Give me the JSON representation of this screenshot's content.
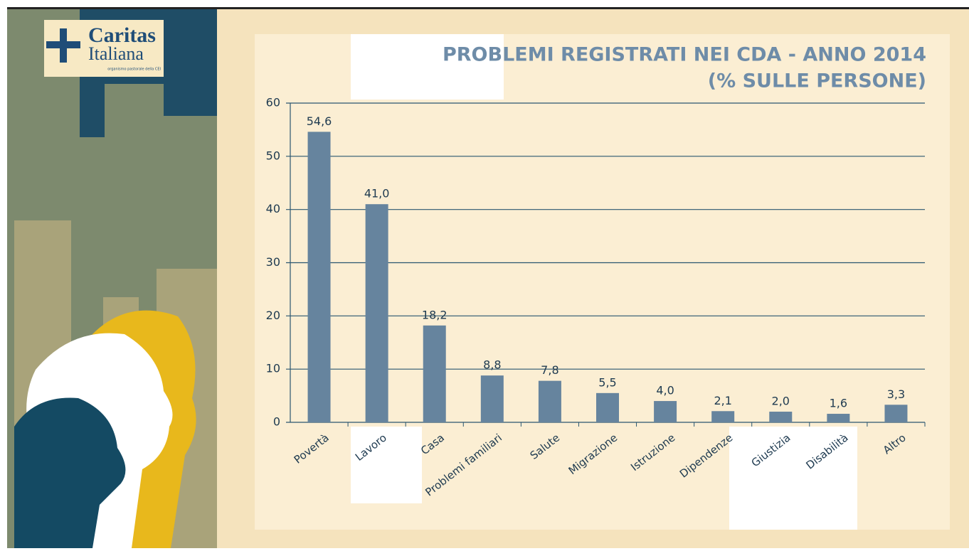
{
  "logo": {
    "name": "Caritas",
    "name2": "Italiana",
    "tagline": "organismo pastorale della CEI"
  },
  "chart_data": {
    "type": "bar",
    "title": "PROBLEMI REGISTRATI NEI CDA - ANNO 2014",
    "subtitle": "(% SULLE PERSONE)",
    "categories": [
      "Povertà",
      "Lavoro",
      "Casa",
      "Problemi familiari",
      "Salute",
      "Migrazione",
      "Istruzione",
      "Dipendenze",
      "Giustizia",
      "Disabilità",
      "Altro"
    ],
    "values": [
      54.6,
      41.0,
      18.2,
      8.8,
      7.8,
      5.5,
      4.0,
      2.1,
      2.0,
      1.6,
      3.3
    ],
    "value_labels": [
      "54,6",
      "41,0",
      "18,2",
      "8,8",
      "7,8",
      "5,5",
      "4,0",
      "2,1",
      "2,0",
      "1,6",
      "3,3"
    ],
    "color": "#66849e",
    "ylim": [
      0,
      60
    ],
    "yticks": [
      0,
      10,
      20,
      30,
      40,
      50,
      60
    ],
    "grid": true
  }
}
